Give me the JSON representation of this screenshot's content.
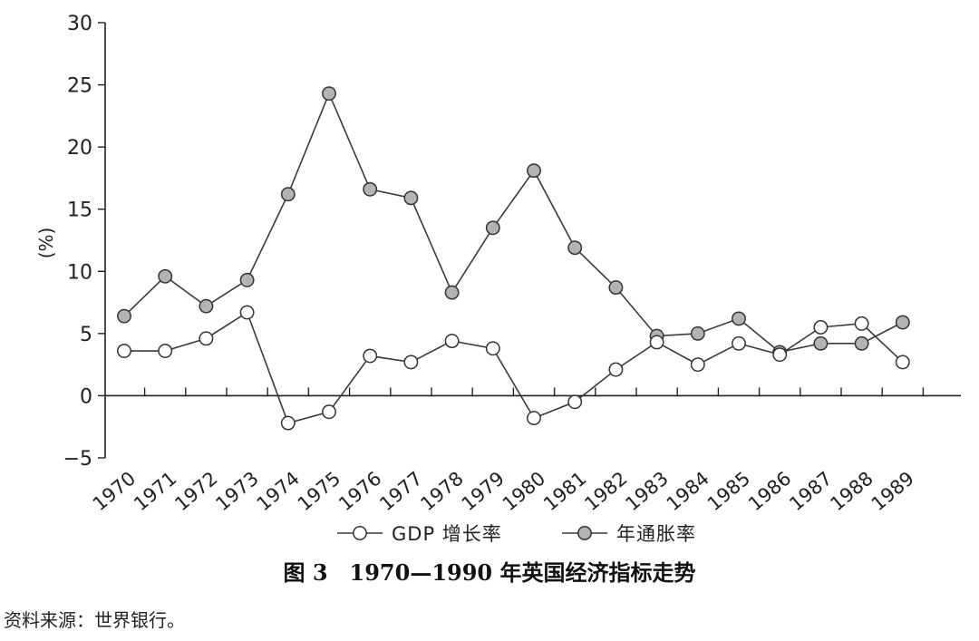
{
  "chart_data": {
    "type": "line",
    "title": "图 3　1970—1990 年英国经济指标走势",
    "ylabel": "(%)",
    "xlabel": "",
    "ylim": [
      -5,
      30
    ],
    "yticks": [
      -5,
      0,
      5,
      10,
      15,
      20,
      25,
      30
    ],
    "categories": [
      "1970",
      "1971",
      "1972",
      "1973",
      "1974",
      "1975",
      "1976",
      "1977",
      "1978",
      "1979",
      "1980",
      "1981",
      "1982",
      "1983",
      "1984",
      "1985",
      "1986",
      "1987",
      "1988",
      "1989"
    ],
    "series": [
      {
        "name": "GDP 增长率",
        "marker": "open-circle",
        "color": "#ffffff",
        "values": [
          3.6,
          3.6,
          4.6,
          6.7,
          -2.2,
          -1.3,
          3.2,
          2.7,
          4.4,
          3.8,
          -1.8,
          -0.5,
          2.1,
          4.3,
          2.5,
          4.2,
          3.3,
          5.5,
          5.8,
          2.7
        ]
      },
      {
        "name": "年通胀率",
        "marker": "filled-circle",
        "color": "#b3b3b3",
        "values": [
          6.4,
          9.6,
          7.2,
          9.3,
          16.2,
          24.3,
          16.6,
          15.9,
          8.3,
          13.5,
          18.1,
          11.9,
          8.7,
          4.8,
          5.0,
          6.2,
          3.5,
          4.2,
          4.2,
          5.9
        ]
      }
    ],
    "legend_position": "bottom",
    "grid": false
  },
  "caption": "图 3　1970—1990 年英国经济指标走势",
  "source_note": "资料来源：世界银行。"
}
